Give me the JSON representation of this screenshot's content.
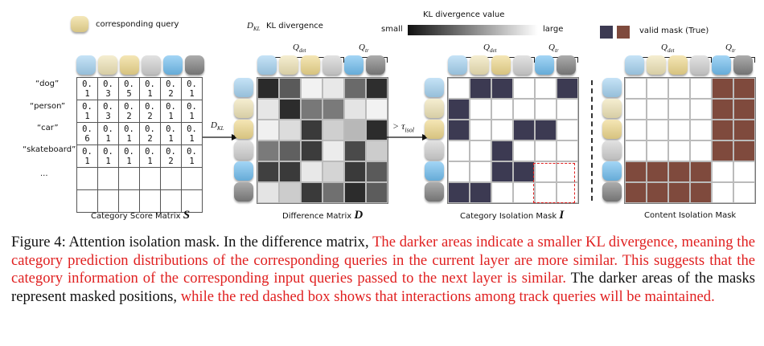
{
  "legend": {
    "query_label": "corresponding query",
    "query_color": "#efdb93",
    "kl_title": "D",
    "kl_sub": "KL",
    "kl_text": "KL divergence",
    "kl_value_title": "KL divergence value",
    "kl_small": "small",
    "kl_large": "large",
    "valid_mask": "valid mask (True)",
    "mask_dark_color": "#3c3a52",
    "mask_brown_color": "#7f4a3d"
  },
  "queries": {
    "det": "Q",
    "det_sub": "det",
    "tr": "Q",
    "tr_sub": "tr",
    "colors": [
      "#a7d4f2",
      "#f0e5b8",
      "#efd98e",
      "#d2d2d2",
      "#72bff0",
      "#808080"
    ]
  },
  "score_matrix": {
    "title": "Category Score Matrix",
    "symbol": "S",
    "row_labels": [
      "“dog”",
      "“person”",
      "“car”",
      "“skateboard”",
      "...",
      ""
    ],
    "rows": [
      [
        "0. 1",
        "0. 3",
        "0. 5",
        "0. 1",
        "0. 2",
        "0. 1"
      ],
      [
        "0. 1",
        "0. 3",
        "0. 2",
        "0. 2",
        "0. 1",
        "0. 1"
      ],
      [
        "0. 6",
        "0. 1",
        "0. 1",
        "0. 2",
        "0. 1",
        "0. 1"
      ],
      [
        "0. 1",
        "0. 1",
        "0. 1",
        "0. 1",
        "0. 2",
        "0. 1"
      ],
      [
        "",
        "",
        "",
        "",
        "",
        ""
      ],
      [
        "",
        "",
        "",
        "",
        "",
        ""
      ]
    ]
  },
  "arrow1": {
    "label": "D",
    "sub": "KL"
  },
  "arrow2": {
    "label": "> τ",
    "sub": "isol"
  },
  "difference_matrix": {
    "title": "Difference Matrix",
    "symbol": "D",
    "cells": [
      [
        "#2a2a2a",
        "#5a5a5a",
        "#f2f2f2",
        "#e8e8e8",
        "#6a6a6a",
        "#2e2e2e"
      ],
      [
        "#e6e6e6",
        "#2c2c2c",
        "#787878",
        "#7a7a7a",
        "#e4e4e4",
        "#f2f2f2"
      ],
      [
        "#f0f0f0",
        "#dcdcdc",
        "#3a3a3a",
        "#cfcfcf",
        "#b8b8b8",
        "#2c2c2c"
      ],
      [
        "#7a7a7a",
        "#606060",
        "#3c3c3c",
        "#ececec",
        "#4a4a4a",
        "#cccccc"
      ],
      [
        "#404040",
        "#3a3a3a",
        "#e8e8e8",
        "#d4d4d4",
        "#3a3a3a",
        "#5a5a5a"
      ],
      [
        "#e4e4e4",
        "#cccccc",
        "#3a3a3a",
        "#707070",
        "#2c2c2c",
        "#5c5c5c"
      ]
    ]
  },
  "isolation_mask": {
    "title": "Category Isolation Mask",
    "symbol": "I",
    "cells": [
      [
        0,
        1,
        1,
        0,
        0,
        1
      ],
      [
        1,
        0,
        0,
        0,
        0,
        0
      ],
      [
        1,
        0,
        0,
        1,
        1,
        0
      ],
      [
        0,
        0,
        1,
        0,
        0,
        0
      ],
      [
        0,
        0,
        1,
        1,
        0,
        0
      ],
      [
        1,
        1,
        0,
        0,
        0,
        0
      ]
    ]
  },
  "content_mask": {
    "title": "Content Isolation Mask",
    "cells": [
      [
        0,
        0,
        0,
        0,
        1,
        1
      ],
      [
        0,
        0,
        0,
        0,
        1,
        1
      ],
      [
        0,
        0,
        0,
        0,
        1,
        1
      ],
      [
        0,
        0,
        0,
        0,
        1,
        1
      ],
      [
        1,
        1,
        1,
        1,
        0,
        0
      ],
      [
        1,
        1,
        1,
        1,
        0,
        0
      ]
    ]
  },
  "caption": {
    "p1": "Figure 4:  Attention isolation mask.  In the difference matrix,",
    "p2": " The darker areas indicate a smaller KL divergence, meaning the category prediction distributions of the corresponding queries in the current layer are more similar.  This suggests that the category information of the corresponding input queries passed to the next layer is similar.",
    "p3": "  The darker areas of the masks represent masked positions,",
    "p4": " while the red dashed box shows that interactions among track queries will be maintained."
  }
}
